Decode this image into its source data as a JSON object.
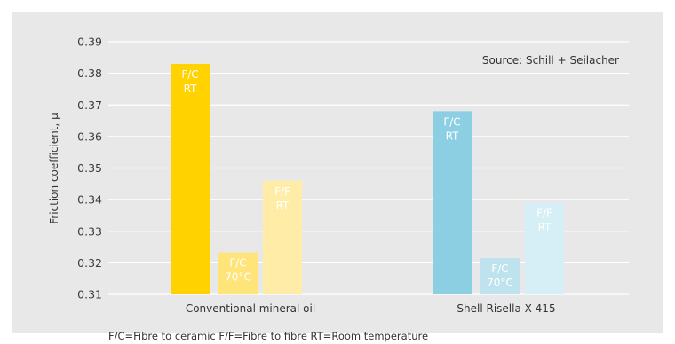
{
  "chart_data": {
    "type": "bar",
    "ylabel": "Friction coefficient, µ",
    "ylim": [
      0.31,
      0.39
    ],
    "yticks": [
      "0.31",
      "0.32",
      "0.33",
      "0.34",
      "0.35",
      "0.36",
      "0.37",
      "0.38",
      "0.39"
    ],
    "source": "Source: Schill + Seilacher",
    "footnote": "F/C=Fibre to ceramic  F/F=Fibre to fibre  RT=Room temperature",
    "grid": true,
    "categories": [
      "Conventional mineral oil",
      "Shell Risella X 415"
    ],
    "series": [
      {
        "labels": [
          [
            "F/C",
            "RT"
          ],
          [
            "F/C",
            "RT"
          ]
        ],
        "values": [
          0.383,
          0.368
        ],
        "colors": [
          "#ffd200",
          "#8ccfe3"
        ]
      },
      {
        "labels": [
          [
            "F/C",
            "70°C"
          ],
          [
            "F/C",
            "70°C"
          ]
        ],
        "values": [
          0.3233,
          0.3215
        ],
        "colors": [
          "#ffe47a",
          "#bfe3ee"
        ]
      },
      {
        "labels": [
          [
            "F/F",
            "RT"
          ],
          [
            "F/F",
            "RT"
          ]
        ],
        "values": [
          0.346,
          0.339
        ],
        "colors": [
          "#ffeca6",
          "#d6eef5"
        ]
      }
    ]
  }
}
